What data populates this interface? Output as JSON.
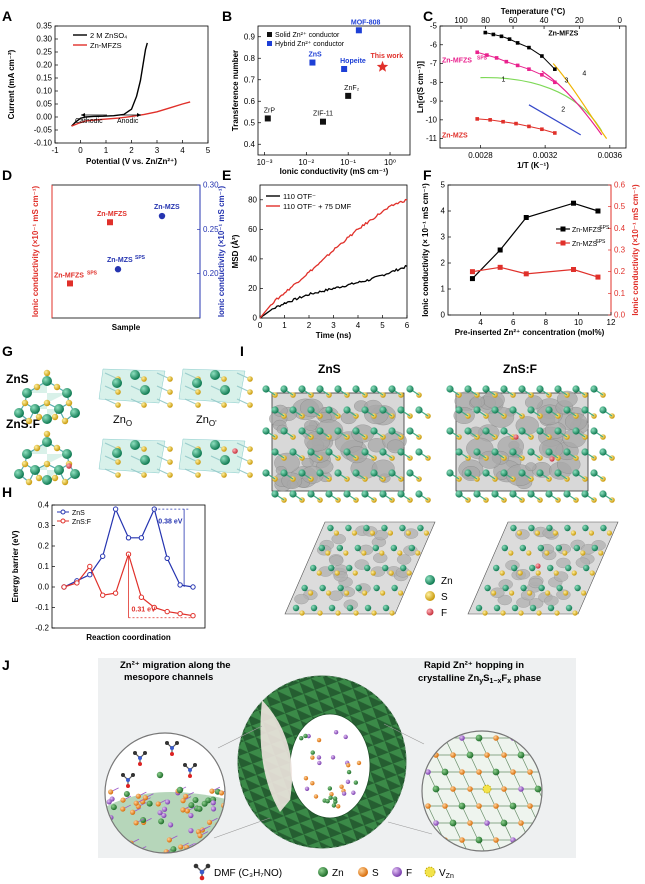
{
  "panels": {
    "A": "A",
    "B": "B",
    "C": "C",
    "D": "D",
    "E": "E",
    "F": "F",
    "G": "G",
    "H": "H",
    "I": "I",
    "J": "J"
  },
  "chart_data": [
    {
      "id": "A",
      "type": "line",
      "xlabel": "Potential (V vs. Zn/Zn²⁺)",
      "ylabel": "Current (mA cm⁻²)",
      "xlim": [
        -1,
        5
      ],
      "ylim": [
        -0.1,
        0.35
      ],
      "xticks": [
        -1,
        0,
        1,
        2,
        3,
        4,
        5
      ],
      "yticks": [
        -0.1,
        -0.05,
        0.0,
        0.05,
        0.1,
        0.15,
        0.2,
        0.25,
        0.3,
        0.35
      ],
      "annotations": [
        "Cathodic",
        "Anodic"
      ],
      "series": [
        {
          "name": "2 M ZnSO₄",
          "color": "#000000",
          "x": [
            -0.35,
            -0.2,
            0,
            0.2,
            0.5,
            0.9,
            1.3,
            1.7,
            2.0,
            2.2,
            2.35,
            2.45,
            2.55,
            2.62
          ],
          "y": [
            -0.035,
            -0.02,
            -0.005,
            0.0,
            0.002,
            0.003,
            0.005,
            0.01,
            0.03,
            0.08,
            0.14,
            0.2,
            0.26,
            0.285
          ]
        },
        {
          "name": "Zn-MFZS",
          "color": "#e0302a",
          "x": [
            -0.35,
            -0.1,
            0.2,
            0.5,
            1.0,
            1.5,
            2.0,
            2.5,
            3.0,
            3.5,
            4.0,
            4.3
          ],
          "y": [
            -0.035,
            -0.025,
            -0.015,
            -0.012,
            -0.008,
            -0.004,
            0.002,
            0.01,
            0.02,
            0.035,
            0.05,
            0.058
          ]
        }
      ]
    },
    {
      "id": "B",
      "type": "scatter",
      "xlabel": "Ionic conductivity (mS cm⁻¹)",
      "ylabel": "Transference number",
      "xscale": "log",
      "xlim": [
        0.0007,
        3
      ],
      "ylim": [
        0.35,
        0.95
      ],
      "xticks": [
        "10⁻³",
        "10⁻²",
        "10⁻¹",
        "10⁰"
      ],
      "yticks": [
        0.4,
        0.5,
        0.6,
        0.7,
        0.8,
        0.9
      ],
      "legend": [
        "Solid Zn²⁺ conductor",
        "Hybrid Zn²⁺ conductor"
      ],
      "points": [
        {
          "label": "ZrP",
          "x": 0.0012,
          "y": 0.52,
          "kind": "solid"
        },
        {
          "label": "ZIF-11",
          "x": 0.025,
          "y": 0.505,
          "kind": "solid"
        },
        {
          "label": "ZnF₂",
          "x": 0.1,
          "y": 0.625,
          "kind": "solid"
        },
        {
          "label": "ZnS",
          "x": 0.014,
          "y": 0.78,
          "kind": "hybrid"
        },
        {
          "label": "Hopeite",
          "x": 0.08,
          "y": 0.75,
          "kind": "hybrid"
        },
        {
          "label": "MOF-808",
          "x": 0.18,
          "y": 0.93,
          "kind": "hybrid"
        },
        {
          "label": "This work",
          "x": 0.66,
          "y": 0.76,
          "kind": "star"
        }
      ]
    },
    {
      "id": "C",
      "type": "line",
      "xlabel": "1/T (K⁻¹)",
      "ylabel": "Ln[σ(S cm⁻¹)]",
      "top_xlabel": "Temperature (°C)",
      "xlim": [
        0.00255,
        0.0037
      ],
      "ylim": [
        -11.5,
        -5
      ],
      "xticks": [
        "0.0028",
        "0.0032",
        "0.0036"
      ],
      "top_xticks": [
        "100",
        "80",
        "60",
        "40",
        "20",
        "0"
      ],
      "yticks": [
        -11,
        -10,
        -9,
        -8,
        -7,
        -6,
        -5
      ],
      "region_labels": [
        "1",
        "2",
        "3",
        "4"
      ],
      "series": [
        {
          "name": "Zn-MFZS",
          "color": "#000000",
          "x": [
            0.00283,
            0.00288,
            0.00293,
            0.00298,
            0.00303,
            0.0031,
            0.00318,
            0.00326
          ],
          "y": [
            -5.35,
            -5.45,
            -5.55,
            -5.7,
            -5.9,
            -6.15,
            -6.6,
            -7.3
          ]
        },
        {
          "name": "Zn-MFZS^SPS",
          "color": "#e9218d",
          "x": [
            0.00278,
            0.00284,
            0.0029,
            0.00296,
            0.00303,
            0.0031,
            0.00318,
            0.00326
          ],
          "y": [
            -6.4,
            -6.55,
            -6.7,
            -6.9,
            -7.1,
            -7.3,
            -7.6,
            -8.0
          ]
        },
        {
          "name": "Zn-MZS",
          "color": "#e0302a",
          "x": [
            0.00278,
            0.00286,
            0.00294,
            0.00302,
            0.0031,
            0.00318,
            0.00326
          ],
          "y": [
            -9.95,
            -10.0,
            -10.1,
            -10.2,
            -10.35,
            -10.5,
            -10.7
          ]
        }
      ]
    },
    {
      "id": "D",
      "type": "scatter",
      "xlabel": "Sample",
      "ylabel": "Ionic conductivity (×10⁻¹ mS cm⁻¹)",
      "ylabel_right": "Ionic conductivity (×10⁻¹ mS cm⁻¹)",
      "ylim_right": [
        0.15,
        0.3
      ],
      "yticks_right": [
        "0.20",
        "0.25",
        "0.30"
      ],
      "points": [
        {
          "label": "Zn-MFZS^SPS",
          "y": 4.3,
          "axis": "left",
          "color": "#e0302a"
        },
        {
          "label": "Zn-MFZS",
          "y": 6.6,
          "axis": "left",
          "color": "#e0302a"
        },
        {
          "label": "Zn-MZS^SPS",
          "y": 0.205,
          "axis": "right",
          "color": "#2534b0"
        },
        {
          "label": "Zn-MZS",
          "y": 0.265,
          "axis": "right",
          "color": "#2534b0"
        }
      ]
    },
    {
      "id": "E",
      "type": "line",
      "xlabel": "Time (ns)",
      "ylabel": "MSD (Å²)",
      "xlim": [
        0,
        6
      ],
      "ylim": [
        0,
        90
      ],
      "xticks": [
        0,
        1,
        2,
        3,
        4,
        5,
        6
      ],
      "yticks": [
        0,
        20,
        40,
        60,
        80
      ],
      "series": [
        {
          "name": "110 OTF⁻",
          "color": "#000000",
          "x": [
            0,
            0.5,
            1,
            1.5,
            2,
            2.5,
            3,
            3.5,
            4,
            4.5,
            5,
            5.5,
            6
          ],
          "y": [
            0,
            6,
            10,
            13,
            16,
            18,
            20,
            22,
            24,
            26,
            29,
            32,
            35
          ]
        },
        {
          "name": "110 OTF⁻ + 75 DMF",
          "color": "#e0302a",
          "x": [
            0,
            0.5,
            1,
            1.5,
            2,
            2.5,
            3,
            3.5,
            4,
            4.5,
            5,
            5.5,
            6
          ],
          "y": [
            0,
            10,
            17,
            24,
            31,
            38,
            46,
            53,
            60,
            66,
            72,
            77,
            80
          ]
        }
      ]
    },
    {
      "id": "F",
      "type": "line",
      "xlabel": "Pre-inserted Zn²⁺ concentration (mol%)",
      "ylabel": "Ionic conductivity (× 10⁻¹ mS cm⁻¹)",
      "ylabel_right": "Ionic conductivity (×10⁻¹ mS cm⁻¹)",
      "xlim": [
        2,
        12
      ],
      "xticks": [
        4,
        6,
        8,
        10,
        12
      ],
      "ylim": [
        0,
        5
      ],
      "yticks": [
        0,
        1,
        2,
        3,
        4,
        5
      ],
      "ylim_right": [
        0,
        0.6
      ],
      "yticks_right": [
        "0.0",
        "0.1",
        "0.2",
        "0.3",
        "0.4",
        "0.5",
        "0.6"
      ],
      "series": [
        {
          "name": "Zn-MFZS^SPS",
          "color": "#000000",
          "axis": "left",
          "x": [
            3.5,
            5.2,
            6.8,
            9.7,
            11.2
          ],
          "y": [
            1.4,
            2.5,
            3.75,
            4.3,
            4.0
          ]
        },
        {
          "name": "Zn-MZS^SPS",
          "color": "#e0302a",
          "axis": "right",
          "x": [
            3.5,
            5.2,
            6.8,
            9.7,
            11.2
          ],
          "y": [
            0.2,
            0.22,
            0.19,
            0.21,
            0.175
          ]
        }
      ]
    },
    {
      "id": "H",
      "type": "line",
      "xlabel": "Reaction coordination",
      "ylabel": "Energy barrier (eV)",
      "ylim": [
        -0.2,
        0.4
      ],
      "yticks": [
        "-0.2",
        "-0.1",
        "0.0",
        "0.1",
        "0.2",
        "0.3",
        "0.4"
      ],
      "annotations": [
        "0.38 eV",
        "0.31 eV"
      ],
      "series": [
        {
          "name": "ZnS",
          "color": "#2534b0",
          "y": [
            0.0,
            0.03,
            0.06,
            0.15,
            0.38,
            0.24,
            0.24,
            0.38,
            0.14,
            0.01,
            0.0
          ]
        },
        {
          "name": "ZnS:F",
          "color": "#e0302a",
          "y": [
            0.0,
            0.02,
            0.1,
            -0.04,
            -0.03,
            0.16,
            -0.05,
            -0.1,
            -0.12,
            -0.13,
            -0.14
          ]
        }
      ]
    }
  ],
  "structures": {
    "g_top": "ZnS",
    "g_bottom": "ZnS:F",
    "site_1": "Zn",
    "site_1_sub": "O",
    "site_2": "Zn",
    "site_2_sub": "O'",
    "i_left": "ZnS",
    "i_right": "ZnS:F",
    "i_legend": [
      {
        "label": "Zn",
        "color": "#1f9e6e"
      },
      {
        "label": "S",
        "color": "#e4bd1b"
      },
      {
        "label": "F",
        "color": "#e24a55"
      }
    ]
  },
  "schematic": {
    "left_text_1": "Zn²⁺ migration along the",
    "left_text_2": "mesopore channels",
    "right_text_1": "Rapid Zn²⁺ hopping in",
    "right_text_2": "crystalline Zn",
    "right_text_3": "phase",
    "legend": [
      {
        "label": "DMF (C₃H₇NO)"
      },
      {
        "label": "Zn",
        "color": "#2f8a3a"
      },
      {
        "label": "S",
        "color": "#f08a1c"
      },
      {
        "label": "F",
        "color": "#9b59c9"
      },
      {
        "label": "V",
        "sub": "Zn",
        "color": "#f3e34a"
      }
    ]
  }
}
